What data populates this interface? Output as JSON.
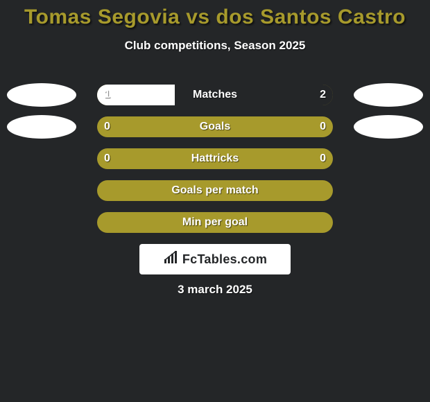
{
  "background_color": "#242628",
  "text_color": "#ffffff",
  "header": {
    "title": "Tomas Segovia vs dos Santos Castro",
    "title_color": "#a79a2c",
    "title_fontsize": 30,
    "subtitle": "Club competitions, Season 2025",
    "subtitle_color": "#ffffff",
    "subtitle_fontsize": 17
  },
  "bars": {
    "track_width": 340,
    "track_height": 30,
    "border_radius": 15,
    "empty_color": "#a79a2c",
    "left_fill_color": "#ffffff",
    "right_fill_color": "#242628",
    "label_color": "#ffffff",
    "value_color": "#ffffff",
    "label_fontsize": 16
  },
  "avatars": {
    "show": true,
    "color": "#ffffff",
    "width": 100,
    "height": 34
  },
  "rows": [
    {
      "label": "Matches",
      "left": "1",
      "right": "2",
      "left_pct": 33,
      "right_pct": 67,
      "show_left_avatar": true,
      "show_right_avatar": true
    },
    {
      "label": "Goals",
      "left": "0",
      "right": "0",
      "left_pct": 0,
      "right_pct": 0,
      "show_left_avatar": true,
      "show_right_avatar": true
    },
    {
      "label": "Hattricks",
      "left": "0",
      "right": "0",
      "left_pct": 0,
      "right_pct": 0,
      "show_left_avatar": false,
      "show_right_avatar": false
    },
    {
      "label": "Goals per match",
      "left": "",
      "right": "",
      "left_pct": 0,
      "right_pct": 0,
      "show_left_avatar": false,
      "show_right_avatar": false
    },
    {
      "label": "Min per goal",
      "left": "",
      "right": "",
      "left_pct": 0,
      "right_pct": 0,
      "show_left_avatar": false,
      "show_right_avatar": false
    }
  ],
  "branding": {
    "text": "FcTables.com",
    "box_bg": "#ffffff",
    "text_color": "#242628",
    "fontsize": 18
  },
  "footer": {
    "date": "3 march 2025",
    "color": "#ffffff",
    "fontsize": 17
  }
}
